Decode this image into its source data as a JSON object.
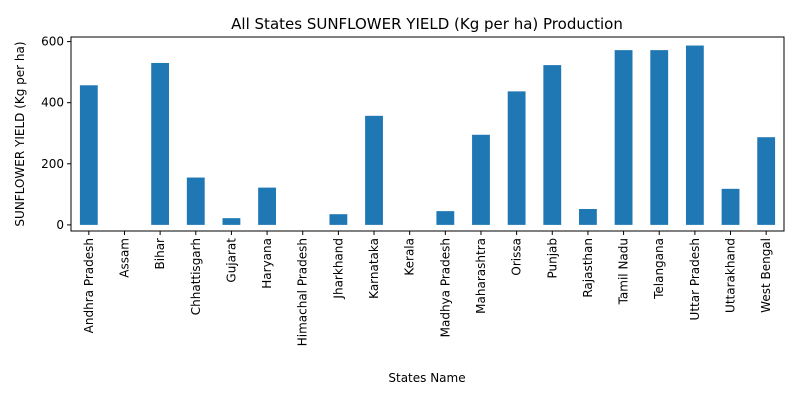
{
  "chart_data": {
    "type": "bar",
    "title": "All States SUNFLOWER YIELD (Kg per ha) Production",
    "xlabel": "States Name",
    "ylabel": "SUNFLOWER YIELD (Kg per ha)",
    "categories": [
      "Andhra Pradesh",
      "Assam",
      "Bihar",
      "Chhattisgarh",
      "Gujarat",
      "Haryana",
      "Himachal Pradesh",
      "Jharkhand",
      "Karnataka",
      "Kerala",
      "Madhya Pradesh",
      "Maharashtra",
      "Orissa",
      "Punjab",
      "Rajasthan",
      "Tamil Nadu",
      "Telangana",
      "Uttar Pradesh",
      "Uttarakhand",
      "West Bengal"
    ],
    "values": [
      457,
      0,
      530,
      155,
      22,
      122,
      0,
      35,
      357,
      0,
      45,
      295,
      437,
      523,
      52,
      572,
      572,
      587,
      118,
      287
    ],
    "ylim": [
      -20,
      615
    ],
    "yticks": [
      0,
      200,
      400,
      600
    ],
    "grid": false,
    "legend": "none",
    "bar_color": "#1f77b4"
  }
}
